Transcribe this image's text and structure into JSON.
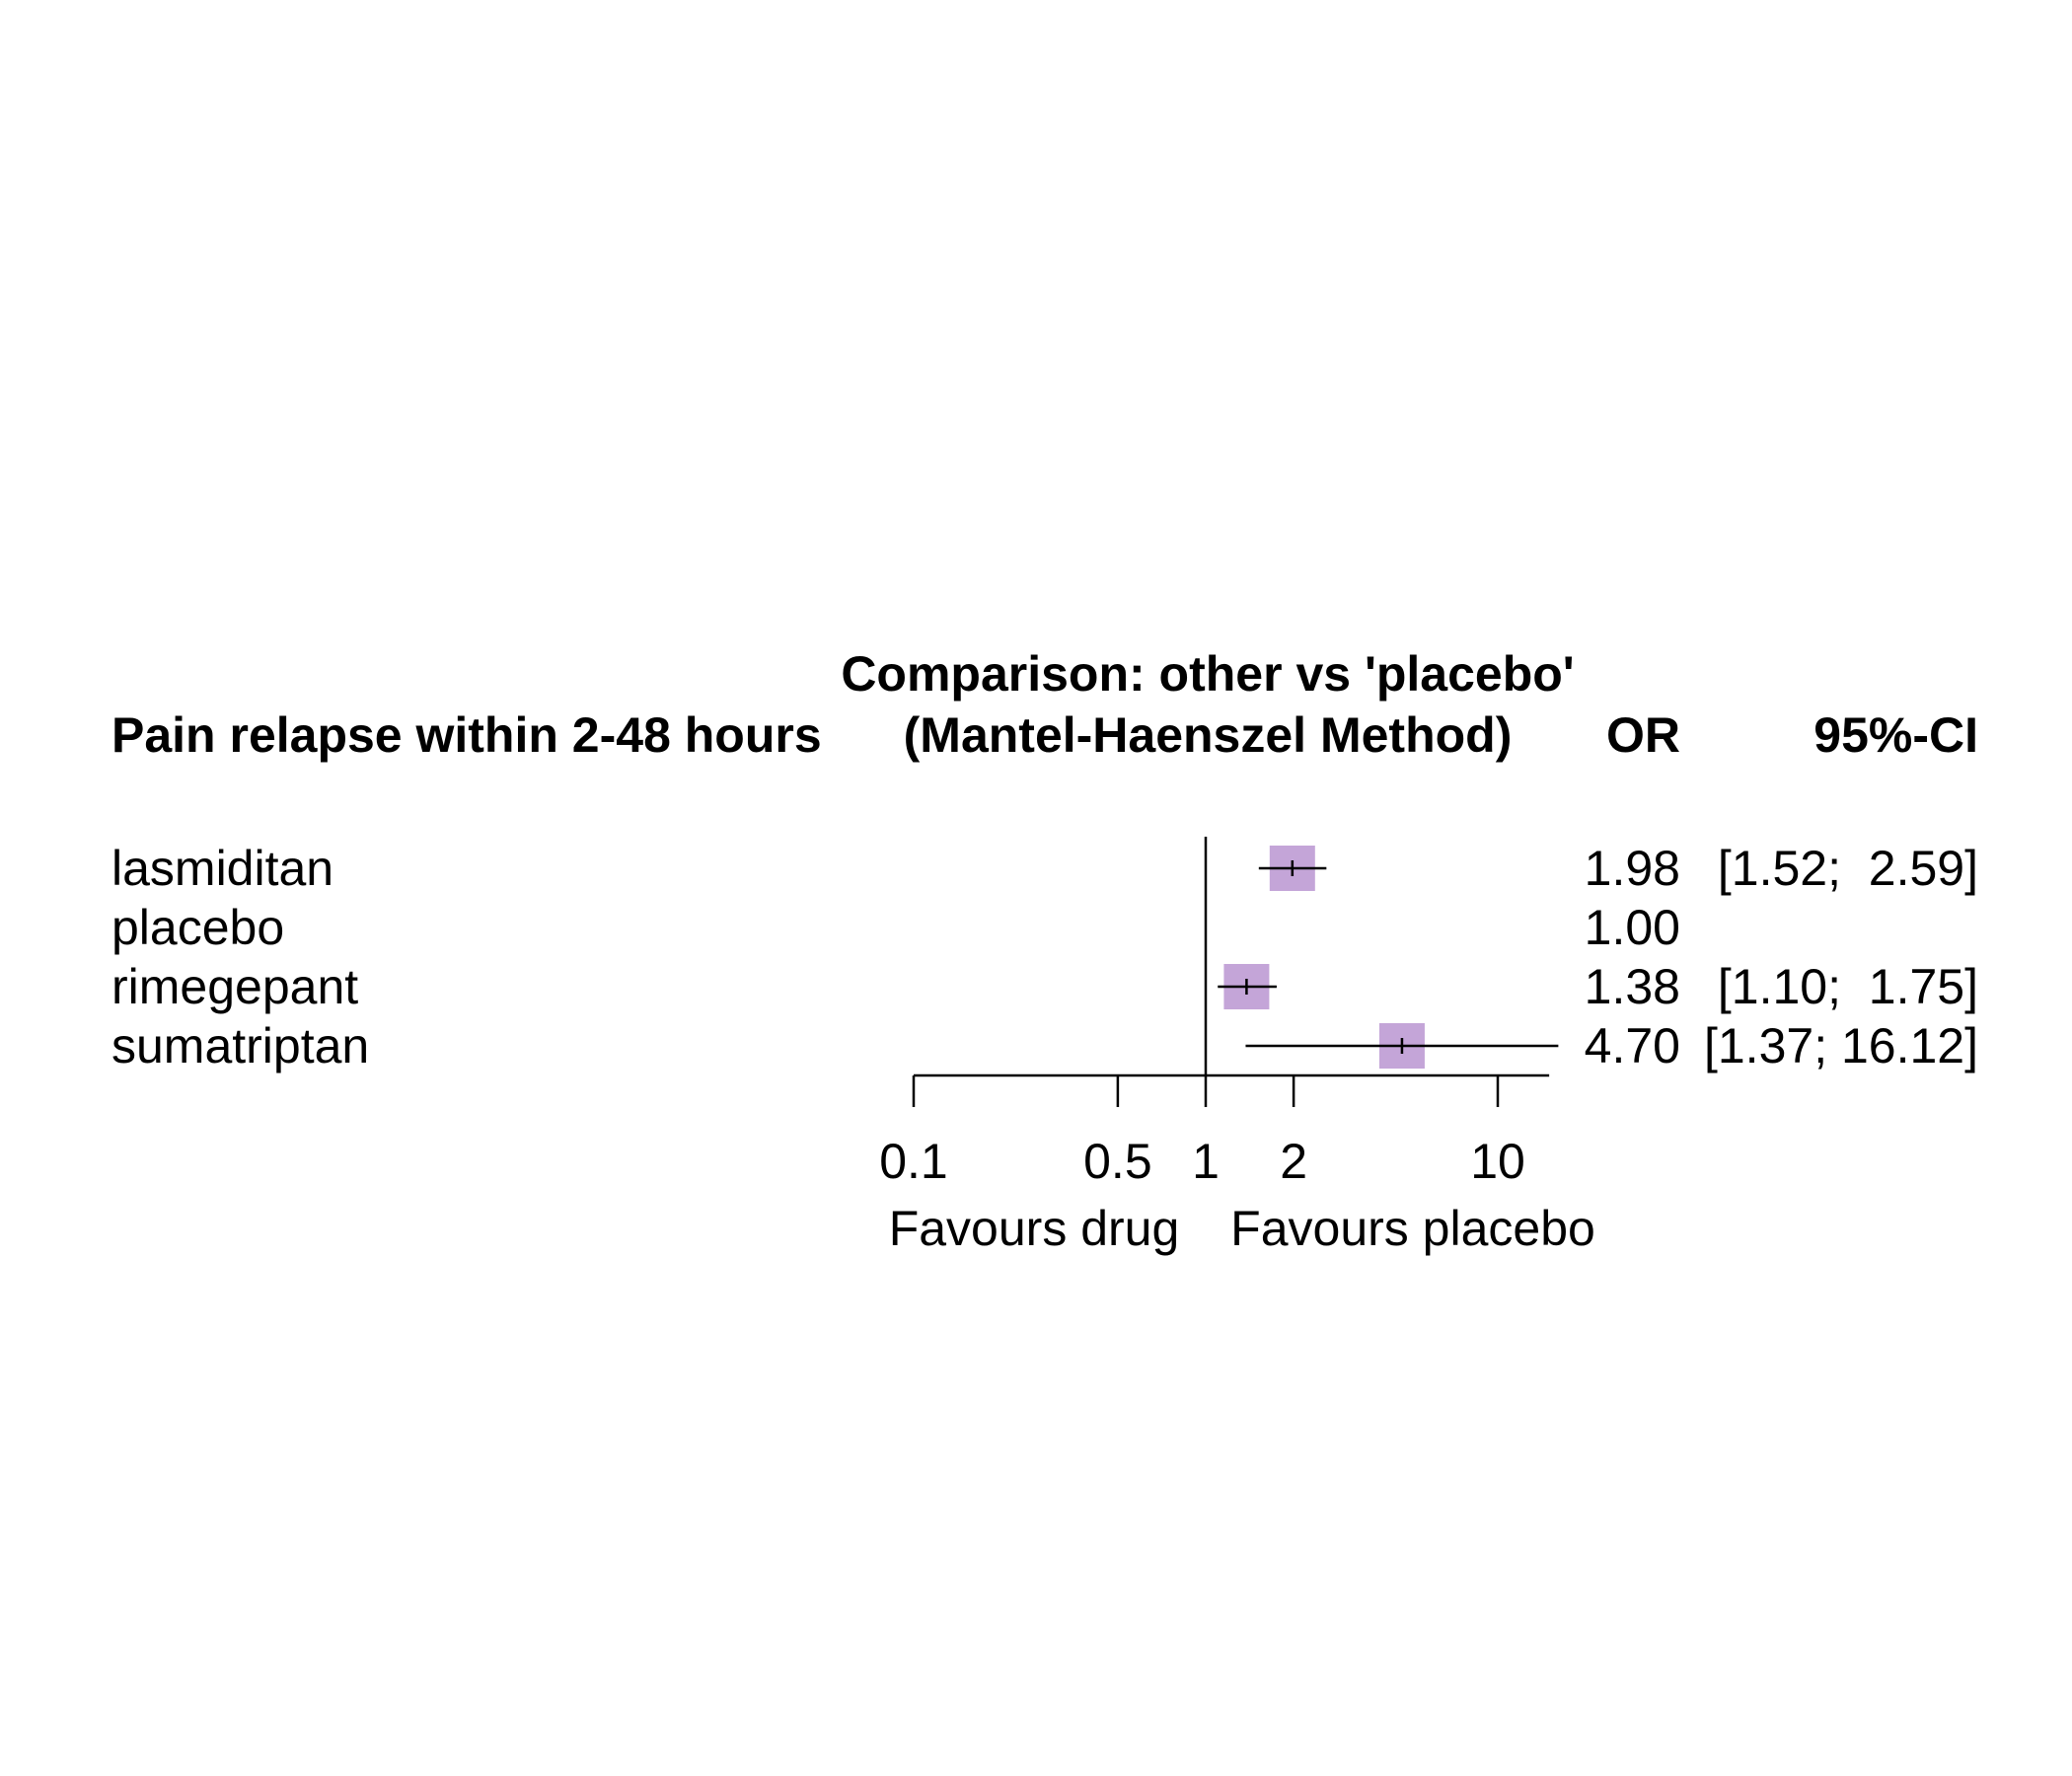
{
  "colors": {
    "box": "#c4a5d8",
    "line": "#000000",
    "background": "#ffffff"
  },
  "headers": {
    "outcome": "Pain relapse within 2-48 hours",
    "comparison_line1": "Comparison: other vs 'placebo'",
    "comparison_line2": "(Mantel-Haenszel Method)",
    "or": "OR",
    "ci": "95%-CI"
  },
  "footer": {
    "left": "Favours drug",
    "right": "Favours placebo"
  },
  "chart_data": {
    "type": "forest",
    "scale": "log",
    "xlim": [
      0.1,
      15
    ],
    "reference_line": 1,
    "xticks": [
      0.1,
      0.5,
      1,
      2,
      10
    ],
    "xtick_labels": [
      "0.1",
      "0.5",
      "1",
      "2",
      "10"
    ],
    "series": [
      {
        "name": "lasmiditan",
        "or": 1.98,
        "lower": 1.52,
        "upper": 2.59,
        "or_label": "1.98",
        "ci_label": "[1.52;  2.59]"
      },
      {
        "name": "placebo",
        "or": 1.0,
        "lower": null,
        "upper": null,
        "or_label": "1.00",
        "ci_label": ""
      },
      {
        "name": "rimegepant",
        "or": 1.38,
        "lower": 1.1,
        "upper": 1.75,
        "or_label": "1.38",
        "ci_label": "[1.10;  1.75]"
      },
      {
        "name": "sumatriptan",
        "or": 4.7,
        "lower": 1.37,
        "upper": 16.12,
        "or_label": "4.70",
        "ci_label": "[1.37; 16.12]"
      }
    ]
  }
}
